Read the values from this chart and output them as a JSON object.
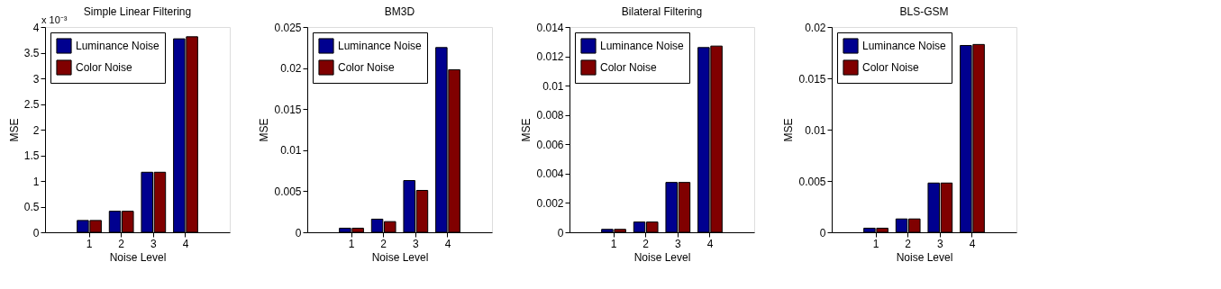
{
  "chart_data": [
    {
      "type": "bar",
      "title": "Simple Linear Filtering",
      "xlabel": "Noise Level",
      "ylabel": "MSE",
      "categories": [
        "1",
        "2",
        "3",
        "4"
      ],
      "series": [
        {
          "name": "Luminance Noise",
          "color": "#00008f",
          "values": [
            0.23,
            0.41,
            1.17,
            3.77
          ]
        },
        {
          "name": "Color Noise",
          "color": "#800000",
          "values": [
            0.23,
            0.41,
            1.17,
            3.81
          ]
        }
      ],
      "ylim": [
        0,
        4
      ],
      "yticks": [
        0,
        0.5,
        1,
        1.5,
        2,
        2.5,
        3,
        3.5,
        4
      ],
      "legend": "top left",
      "annotations": [
        "x 10⁻³"
      ]
    },
    {
      "type": "bar",
      "title": "BM3D",
      "xlabel": "Noise Level",
      "ylabel": "MSE",
      "categories": [
        "1",
        "2",
        "3",
        "4"
      ],
      "series": [
        {
          "name": "Luminance Noise",
          "color": "#00008f",
          "values": [
            0.0005,
            0.0016,
            0.0063,
            0.0225
          ]
        },
        {
          "name": "Color Noise",
          "color": "#800000",
          "values": [
            0.0005,
            0.0013,
            0.0051,
            0.0198
          ]
        }
      ],
      "ylim": [
        0,
        0.025
      ],
      "yticks": [
        0,
        0.005,
        0.01,
        0.015,
        0.02,
        0.025
      ],
      "legend": "top left"
    },
    {
      "type": "bar",
      "title": "Bilateral Filtering",
      "xlabel": "Noise Level",
      "ylabel": "MSE",
      "categories": [
        "1",
        "2",
        "3",
        "4"
      ],
      "series": [
        {
          "name": "Luminance Noise",
          "color": "#00008f",
          "values": [
            0.0002,
            0.0007,
            0.0034,
            0.0126
          ]
        },
        {
          "name": "Color Noise",
          "color": "#800000",
          "values": [
            0.0002,
            0.0007,
            0.0034,
            0.0127
          ]
        }
      ],
      "ylim": [
        0,
        0.014
      ],
      "yticks": [
        0,
        0.002,
        0.004,
        0.006,
        0.008,
        0.01,
        0.012,
        0.014
      ],
      "legend": "top left"
    },
    {
      "type": "bar",
      "title": "BLS-GSM",
      "xlabel": "Noise Level",
      "ylabel": "MSE",
      "categories": [
        "1",
        "2",
        "3",
        "4"
      ],
      "series": [
        {
          "name": "Luminance Noise",
          "color": "#00008f",
          "values": [
            0.0004,
            0.0013,
            0.0048,
            0.0182
          ]
        },
        {
          "name": "Color Noise",
          "color": "#800000",
          "values": [
            0.0004,
            0.0013,
            0.0048,
            0.0183
          ]
        }
      ],
      "ylim": [
        0,
        0.02
      ],
      "yticks": [
        0,
        0.005,
        0.01,
        0.015,
        0.02
      ],
      "legend": "top left"
    }
  ]
}
